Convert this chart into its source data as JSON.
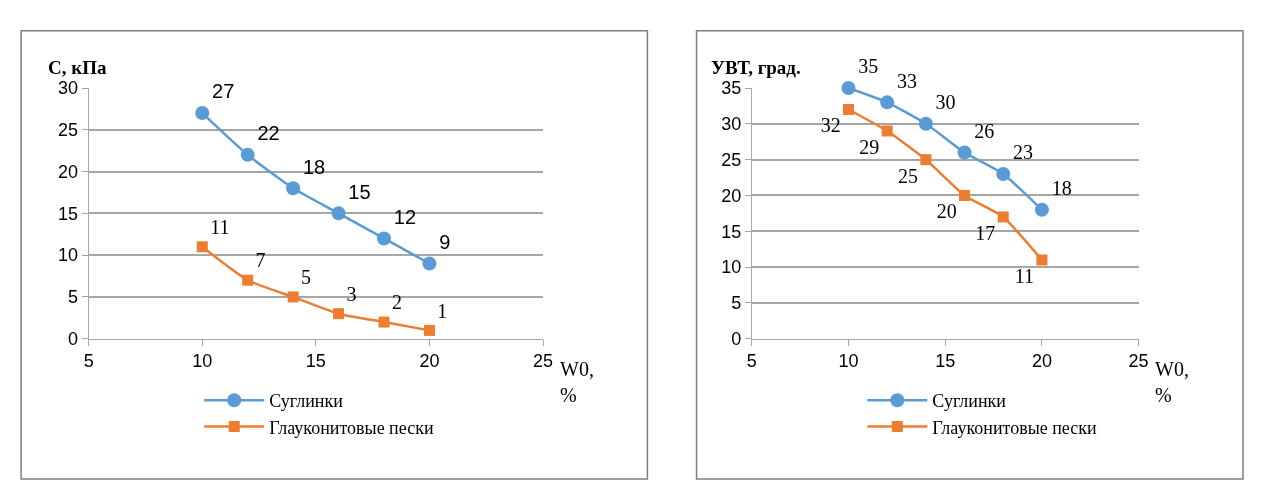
{
  "chart_data": [
    {
      "type": "line",
      "xlabel": "W0, %",
      "ylabel": "C, кПа",
      "x": [
        10,
        12,
        14,
        16,
        18,
        20
      ],
      "xlim": [
        5,
        25
      ],
      "xticks": [
        5,
        10,
        15,
        20,
        25
      ],
      "ylim": [
        0,
        30
      ],
      "yticks": [
        0,
        5,
        10,
        15,
        20,
        25,
        30
      ],
      "grid": "y",
      "legend": "bottom",
      "data_labels": true,
      "series": [
        {
          "name": "Суглинки",
          "color": "#5b9bd5",
          "marker": "circle",
          "values": [
            27,
            22,
            18,
            15,
            12,
            9
          ]
        },
        {
          "name": "Глауконитовые пески",
          "color": "#ed7d31",
          "marker": "square",
          "values": [
            11,
            7,
            5,
            3,
            2,
            1
          ]
        }
      ]
    },
    {
      "type": "line",
      "xlabel": "W0, %",
      "ylabel": "УВТ, град.",
      "x": [
        10,
        12,
        14,
        16,
        18,
        20
      ],
      "xlim": [
        5,
        25
      ],
      "xticks": [
        5,
        10,
        15,
        20,
        25
      ],
      "ylim": [
        0,
        35
      ],
      "yticks": [
        0,
        5,
        10,
        15,
        20,
        25,
        30,
        35
      ],
      "grid": "y",
      "legend": "bottom",
      "data_labels": true,
      "series": [
        {
          "name": "Суглинки",
          "color": "#5b9bd5",
          "marker": "circle",
          "values": [
            35,
            33,
            30,
            26,
            23,
            18
          ]
        },
        {
          "name": "Глауконитовые пески",
          "color": "#ed7d31",
          "marker": "square",
          "values": [
            32,
            29,
            25,
            20,
            17,
            11
          ]
        }
      ]
    }
  ]
}
